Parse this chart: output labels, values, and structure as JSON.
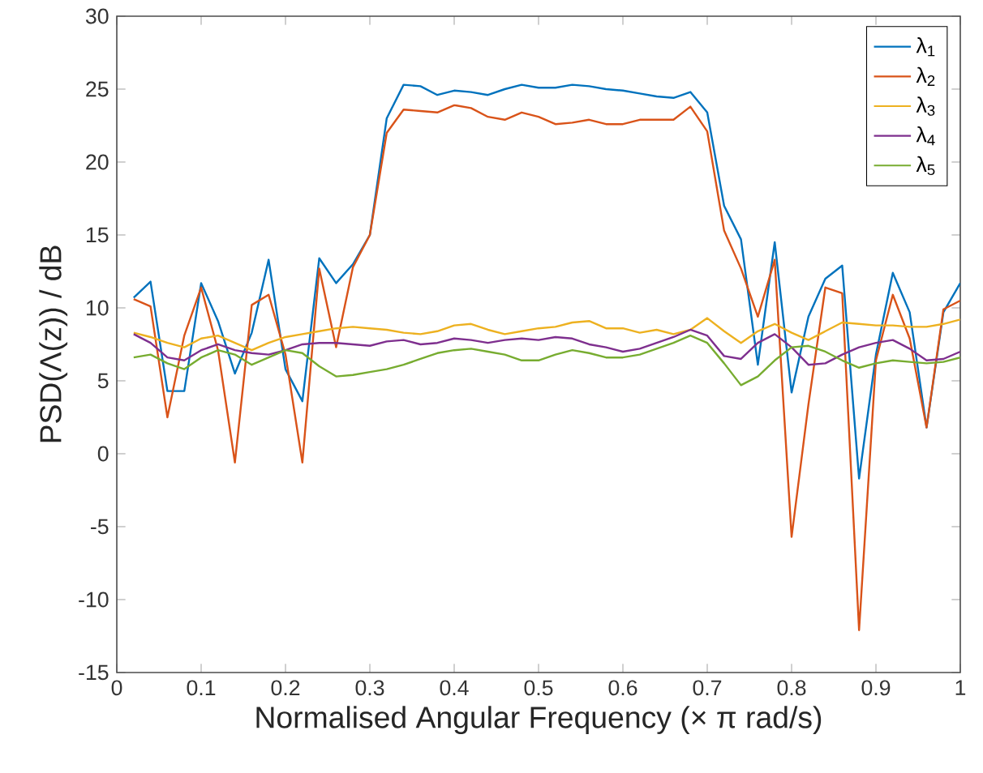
{
  "chart_data": {
    "type": "line",
    "xlabel": "Normalised Angular Frequency (× π rad/s)",
    "ylabel": "PSD(Λ(z)) / dB",
    "x": [
      0.02,
      0.04,
      0.06,
      0.08,
      0.1,
      0.12,
      0.14,
      0.16,
      0.18,
      0.2,
      0.22,
      0.24,
      0.26,
      0.28,
      0.3,
      0.32,
      0.34,
      0.36,
      0.38,
      0.4,
      0.42,
      0.44,
      0.46,
      0.48,
      0.5,
      0.52,
      0.54,
      0.56,
      0.58,
      0.6,
      0.62,
      0.64,
      0.66,
      0.68,
      0.7,
      0.72,
      0.74,
      0.76,
      0.78,
      0.8,
      0.82,
      0.84,
      0.86,
      0.88,
      0.9,
      0.92,
      0.94,
      0.96,
      0.98,
      1.0
    ],
    "series": [
      {
        "name": "λ$_{1}$",
        "color": "#0072bd",
        "values": [
          10.7,
          11.8,
          4.3,
          4.3,
          11.7,
          9.1,
          5.5,
          8.3,
          13.3,
          5.8,
          3.6,
          13.4,
          11.7,
          13.0,
          15.0,
          23.0,
          25.3,
          25.2,
          24.6,
          24.9,
          24.8,
          24.6,
          25.0,
          25.3,
          25.1,
          25.1,
          25.3,
          25.2,
          25.0,
          24.9,
          24.7,
          24.5,
          24.4,
          24.8,
          23.4,
          17.0,
          14.7,
          6.1,
          14.5,
          4.2,
          9.4,
          12.0,
          12.9,
          -1.7,
          6.8,
          12.4,
          9.7,
          1.8,
          9.7,
          11.7
        ]
      },
      {
        "name": "λ$_{2}$",
        "color": "#d95319",
        "values": [
          10.6,
          10.1,
          2.5,
          8.1,
          11.4,
          7.1,
          -0.6,
          10.2,
          10.9,
          6.8,
          -0.6,
          12.7,
          7.3,
          12.8,
          15.0,
          22.0,
          23.6,
          23.5,
          23.4,
          23.9,
          23.7,
          23.1,
          22.9,
          23.4,
          23.1,
          22.6,
          22.7,
          22.9,
          22.6,
          22.6,
          22.9,
          22.9,
          22.9,
          23.8,
          22.1,
          15.3,
          12.7,
          9.4,
          13.3,
          -5.7,
          3.4,
          11.4,
          11.0,
          -12.1,
          6.4,
          10.9,
          7.9,
          1.8,
          9.9,
          10.5
        ]
      },
      {
        "name": "λ$_{3}$",
        "color": "#edb120",
        "values": [
          8.3,
          8.0,
          7.6,
          7.3,
          7.9,
          8.1,
          7.6,
          7.1,
          7.6,
          8.0,
          8.2,
          8.4,
          8.6,
          8.7,
          8.6,
          8.5,
          8.3,
          8.2,
          8.4,
          8.8,
          8.9,
          8.5,
          8.2,
          8.4,
          8.6,
          8.7,
          9.0,
          9.1,
          8.6,
          8.6,
          8.3,
          8.5,
          8.2,
          8.5,
          9.3,
          8.4,
          7.6,
          8.4,
          8.9,
          8.3,
          7.8,
          8.4,
          9.0,
          8.9,
          8.8,
          8.8,
          8.7,
          8.7,
          8.9,
          9.2
        ]
      },
      {
        "name": "λ$_{4}$",
        "color": "#7e2f8e",
        "values": [
          8.2,
          7.6,
          6.6,
          6.4,
          7.1,
          7.5,
          7.1,
          6.9,
          6.8,
          7.1,
          7.5,
          7.6,
          7.6,
          7.5,
          7.4,
          7.7,
          7.8,
          7.5,
          7.6,
          7.9,
          7.8,
          7.6,
          7.8,
          7.9,
          7.8,
          8.0,
          7.9,
          7.5,
          7.3,
          7.0,
          7.2,
          7.6,
          8.0,
          8.5,
          8.1,
          6.7,
          6.5,
          7.6,
          8.2,
          7.3,
          6.1,
          6.2,
          6.8,
          7.3,
          7.6,
          7.8,
          7.2,
          6.4,
          6.5,
          7.0
        ]
      },
      {
        "name": "λ$_{5}$",
        "color": "#77ac30",
        "values": [
          6.6,
          6.8,
          6.2,
          5.8,
          6.6,
          7.1,
          6.8,
          6.1,
          6.6,
          7.1,
          6.9,
          6.0,
          5.3,
          5.4,
          5.6,
          5.8,
          6.1,
          6.5,
          6.9,
          7.1,
          7.2,
          7.0,
          6.8,
          6.4,
          6.4,
          6.8,
          7.1,
          6.9,
          6.6,
          6.6,
          6.8,
          7.2,
          7.6,
          8.1,
          7.6,
          6.2,
          4.7,
          5.3,
          6.4,
          7.3,
          7.4,
          7.0,
          6.4,
          5.9,
          6.2,
          6.4,
          6.3,
          6.2,
          6.3,
          6.6
        ]
      }
    ],
    "xlim": [
      0,
      1
    ],
    "ylim": [
      -15,
      30
    ],
    "xticks": [
      0,
      0.1,
      0.2,
      0.3,
      0.4,
      0.5,
      0.6,
      0.7,
      0.8,
      0.9,
      1
    ],
    "yticks": [
      -15,
      -10,
      -5,
      0,
      5,
      10,
      15,
      20,
      25,
      30
    ],
    "grid": false,
    "legend": "top right",
    "marker": "none",
    "line_style": "solid"
  }
}
